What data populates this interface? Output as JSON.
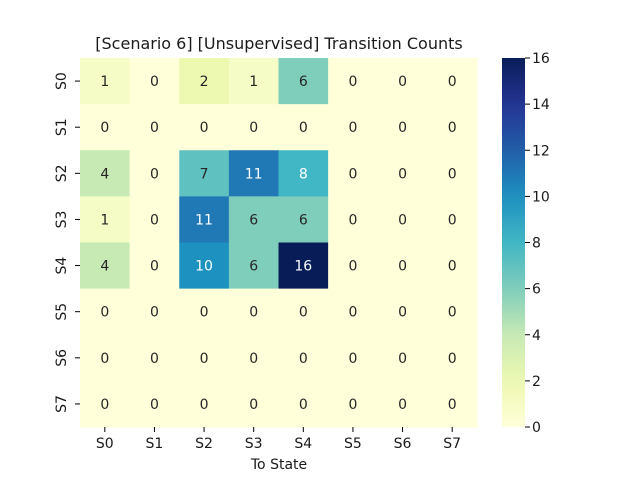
{
  "chart_data": {
    "type": "heatmap",
    "title": "[Scenario 6] [Unsupervised] Transition Counts",
    "xlabel": "To State",
    "ylabel": "",
    "x_categories": [
      "S0",
      "S1",
      "S2",
      "S3",
      "S4",
      "S5",
      "S6",
      "S7"
    ],
    "y_categories": [
      "S0",
      "S1",
      "S2",
      "S3",
      "S4",
      "S5",
      "S6",
      "S7"
    ],
    "values": [
      [
        1,
        0,
        2,
        1,
        6,
        0,
        0,
        0
      ],
      [
        0,
        0,
        0,
        0,
        0,
        0,
        0,
        0
      ],
      [
        4,
        0,
        7,
        11,
        8,
        0,
        0,
        0
      ],
      [
        1,
        0,
        11,
        6,
        6,
        0,
        0,
        0
      ],
      [
        4,
        0,
        10,
        6,
        16,
        0,
        0,
        0
      ],
      [
        0,
        0,
        0,
        0,
        0,
        0,
        0,
        0
      ],
      [
        0,
        0,
        0,
        0,
        0,
        0,
        0,
        0
      ],
      [
        0,
        0,
        0,
        0,
        0,
        0,
        0,
        0
      ]
    ],
    "colorbar": {
      "range": [
        0,
        16
      ],
      "ticks": [
        0,
        2,
        4,
        6,
        8,
        10,
        12,
        14,
        16
      ],
      "colormap": "YlGnBu"
    },
    "annotations_shown": true,
    "grid": false
  }
}
